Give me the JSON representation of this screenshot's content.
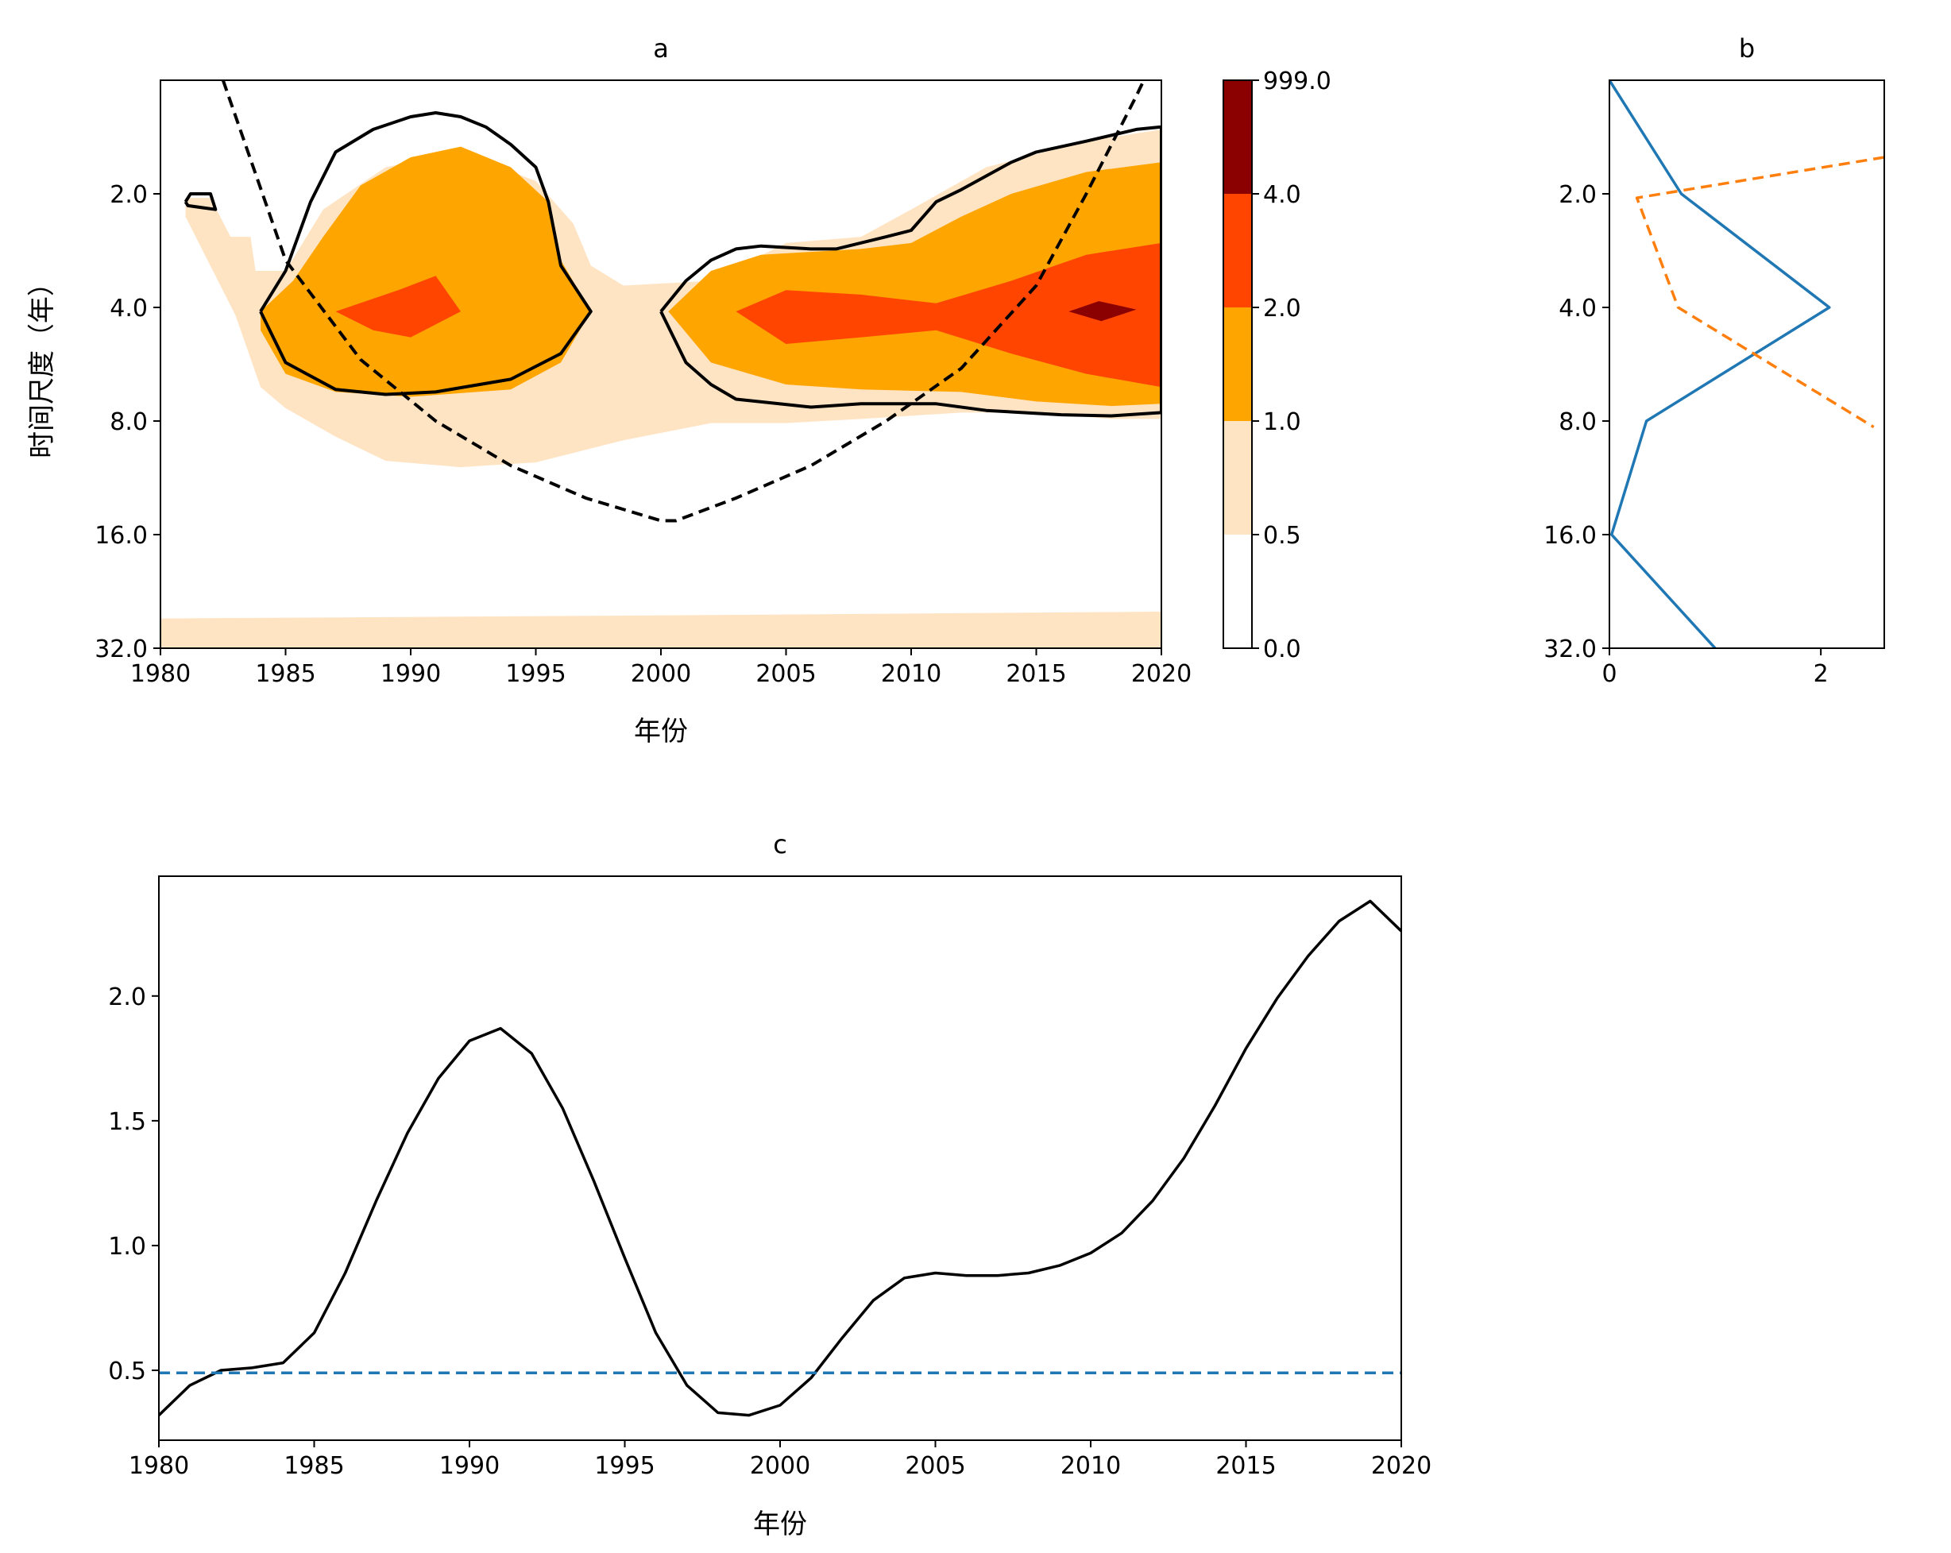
{
  "chart_data": [
    {
      "panel": "a",
      "type": "heatmap",
      "title": "a",
      "xlabel": "年份",
      "ylabel": "时间尺度（年）",
      "xlim": [
        1980,
        2020
      ],
      "x_ticks": [
        1980,
        1985,
        1990,
        1995,
        2000,
        2005,
        2010,
        2015,
        2020
      ],
      "y_scale": "log2",
      "y_inverted": true,
      "ylim": [
        1,
        32
      ],
      "y_ticks": [
        2,
        4,
        8,
        16,
        32
      ],
      "y_tick_labels": [
        "2.0",
        "4.0",
        "8.0",
        "16.0",
        "32.0"
      ],
      "colorbar": {
        "levels": [
          0.0,
          0.5,
          1.0,
          2.0,
          4.0,
          999.0
        ],
        "labels": [
          "0.0",
          "0.5",
          "1.0",
          "2.0",
          "4.0",
          "999.0"
        ],
        "colors": [
          "#ffffff",
          "#ffe4c4",
          "#ffa500",
          "#ff4500",
          "#8b0000"
        ]
      },
      "filled_regions": [
        {
          "level": 1,
          "points": [
            [
              1981,
              2.05
            ],
            [
              1982,
              2.05
            ],
            [
              1982.8,
              2.6
            ],
            [
              1983.6,
              2.6
            ],
            [
              1983.8,
              3.2
            ],
            [
              1985,
              3.2
            ],
            [
              1986.5,
              2.2
            ],
            [
              1989,
              1.7
            ],
            [
              1992,
              1.55
            ],
            [
              1995,
              1.85
            ],
            [
              1996.5,
              2.4
            ],
            [
              1997.2,
              3.1
            ],
            [
              1998.5,
              3.5
            ],
            [
              2002,
              3.4
            ],
            [
              2005,
              2.7
            ],
            [
              2008,
              2.6
            ],
            [
              2010,
              2.2
            ],
            [
              2013,
              1.7
            ],
            [
              2017,
              1.45
            ],
            [
              2020,
              1.35
            ],
            [
              2020,
              7.9
            ],
            [
              2018,
              7.9
            ],
            [
              2015,
              7.6
            ],
            [
              2012,
              7.6
            ],
            [
              2008,
              7.9
            ],
            [
              2005,
              8.1
            ],
            [
              2002,
              8.1
            ],
            [
              1998.5,
              9.0
            ],
            [
              1995,
              10.3
            ],
            [
              1992,
              10.6
            ],
            [
              1989,
              10.2
            ],
            [
              1987,
              8.8
            ],
            [
              1985,
              7.4
            ],
            [
              1984,
              6.5
            ],
            [
              1983,
              4.2
            ],
            [
              1982.1,
              3.2
            ],
            [
              1981,
              2.3
            ]
          ]
        },
        {
          "level": 1,
          "points": [
            [
              1980,
              26.7
            ],
            [
              2000,
              26.2
            ],
            [
              2020,
              25.6
            ],
            [
              2020,
              32
            ],
            [
              1980,
              32
            ]
          ]
        },
        {
          "level": 2,
          "points": [
            [
              1984,
              4.1
            ],
            [
              1985.3,
              3.4
            ],
            [
              1986.5,
              2.6
            ],
            [
              1988,
              1.9
            ],
            [
              1990,
              1.6
            ],
            [
              1992,
              1.5
            ],
            [
              1994,
              1.7
            ],
            [
              1995.5,
              2.1
            ],
            [
              1996,
              3.0
            ],
            [
              1997.2,
              4.1
            ],
            [
              1996,
              5.6
            ],
            [
              1994,
              6.6
            ],
            [
              1990,
              6.9
            ],
            [
              1987,
              6.7
            ],
            [
              1985,
              6.0
            ],
            [
              1984,
              4.6
            ]
          ]
        },
        {
          "level": 2,
          "points": [
            [
              2000.3,
              4.1
            ],
            [
              2002,
              3.2
            ],
            [
              2004,
              2.9
            ],
            [
              2008,
              2.8
            ],
            [
              2010,
              2.7
            ],
            [
              2012,
              2.3
            ],
            [
              2014,
              2.0
            ],
            [
              2017,
              1.75
            ],
            [
              2020,
              1.65
            ],
            [
              2020,
              7.2
            ],
            [
              2018,
              7.3
            ],
            [
              2015,
              7.1
            ],
            [
              2012,
              6.7
            ],
            [
              2008,
              6.6
            ],
            [
              2005,
              6.4
            ],
            [
              2002,
              5.6
            ]
          ]
        },
        {
          "level": 3,
          "points": [
            [
              1987,
              4.1
            ],
            [
              1989.5,
              3.6
            ],
            [
              1991,
              3.3
            ],
            [
              1992,
              4.1
            ],
            [
              1990,
              4.8
            ],
            [
              1988.5,
              4.6
            ]
          ]
        },
        {
          "level": 3,
          "points": [
            [
              2003,
              4.1
            ],
            [
              2005,
              3.6
            ],
            [
              2008,
              3.7
            ],
            [
              2011,
              3.9
            ],
            [
              2014,
              3.4
            ],
            [
              2017,
              2.9
            ],
            [
              2020,
              2.7
            ],
            [
              2020,
              6.5
            ],
            [
              2017,
              6.0
            ],
            [
              2014,
              5.3
            ],
            [
              2011,
              4.6
            ],
            [
              2008,
              4.8
            ],
            [
              2005,
              5.0
            ]
          ]
        },
        {
          "level": 4,
          "points": [
            [
              2016.3,
              4.1
            ],
            [
              2017.5,
              3.85
            ],
            [
              2019,
              4.05
            ],
            [
              2017.6,
              4.35
            ]
          ]
        }
      ],
      "significance_contours": [
        {
          "points": [
            [
              1981,
              2.1
            ],
            [
              1981.2,
              2.0
            ],
            [
              1982,
              2.0
            ],
            [
              1982.2,
              2.2
            ],
            [
              1981.1,
              2.15
            ],
            [
              1981,
              2.1
            ]
          ]
        },
        {
          "points": [
            [
              1984,
              4.1
            ],
            [
              1985,
              3.2
            ],
            [
              1986,
              2.1
            ],
            [
              1987,
              1.55
            ],
            [
              1988.5,
              1.35
            ],
            [
              1990,
              1.25
            ],
            [
              1991,
              1.22
            ],
            [
              1992,
              1.25
            ],
            [
              1993,
              1.33
            ],
            [
              1994,
              1.48
            ],
            [
              1995,
              1.7
            ],
            [
              1995.5,
              2.1
            ],
            [
              1996,
              3.1
            ],
            [
              1997.2,
              4.1
            ],
            [
              1996,
              5.3
            ],
            [
              1994,
              6.2
            ],
            [
              1991,
              6.7
            ],
            [
              1989,
              6.8
            ],
            [
              1987,
              6.6
            ],
            [
              1985,
              5.6
            ],
            [
              1984,
              4.1
            ]
          ]
        },
        {
          "points": [
            [
              2000,
              4.1
            ],
            [
              2001,
              3.4
            ],
            [
              2002,
              3.0
            ],
            [
              2003,
              2.8
            ],
            [
              2004,
              2.75
            ],
            [
              2006,
              2.8
            ],
            [
              2007,
              2.8
            ],
            [
              2009,
              2.6
            ],
            [
              2010,
              2.5
            ],
            [
              2011,
              2.1
            ],
            [
              2012,
              1.95
            ],
            [
              2014,
              1.65
            ],
            [
              2015,
              1.55
            ],
            [
              2017,
              1.45
            ],
            [
              2019,
              1.35
            ],
            [
              2020,
              1.33
            ],
            [
              2020,
              7.6
            ],
            [
              2018,
              7.75
            ],
            [
              2016,
              7.7
            ],
            [
              2013,
              7.5
            ],
            [
              2011,
              7.2
            ],
            [
              2008,
              7.2
            ],
            [
              2006,
              7.35
            ],
            [
              2003,
              7.0
            ],
            [
              2002,
              6.4
            ],
            [
              2001,
              5.6
            ],
            [
              2000,
              4.1
            ]
          ]
        }
      ],
      "cone_of_influence": {
        "x": [
          1982.5,
          1985,
          1988,
          1991,
          1994,
          1997,
          2000,
          2000.6,
          2003,
          2006,
          2009,
          2012,
          2015,
          2017,
          2019,
          2019.3
        ],
        "y": [
          1.0,
          3.0,
          5.5,
          8.0,
          10.5,
          12.8,
          14.7,
          14.7,
          12.8,
          10.5,
          8.0,
          5.8,
          3.5,
          2.0,
          1.1,
          1.0
        ]
      }
    },
    {
      "panel": "b",
      "type": "line",
      "title": "b",
      "xlim": [
        0,
        2.6
      ],
      "x_ticks": [
        0,
        2
      ],
      "y_scale": "log2",
      "y_inverted": true,
      "ylim": [
        1,
        32
      ],
      "y_ticks": [
        2,
        4,
        8,
        16,
        32
      ],
      "y_tick_labels": [
        "2.0",
        "4.0",
        "8.0",
        "16.0",
        "32.0"
      ],
      "series": [
        {
          "color": "#1f77b4",
          "dash": "solid",
          "x": [
            0.0,
            0.68,
            2.08,
            0.35,
            0.02,
            1.0
          ],
          "y": [
            1.0,
            2.0,
            4.0,
            8.0,
            16.0,
            32.0
          ]
        },
        {
          "color": "#ff7f0e",
          "dash": "dashed",
          "x": [
            2.6,
            0.26,
            0.65,
            2.5
          ],
          "y": [
            1.6,
            2.05,
            4.0,
            8.3
          ]
        }
      ]
    },
    {
      "panel": "c",
      "type": "line",
      "title": "c",
      "xlabel": "年份",
      "xlim": [
        1980,
        2020
      ],
      "ylim": [
        0.22,
        2.48
      ],
      "x_ticks": [
        1980,
        1985,
        1990,
        1995,
        2000,
        2005,
        2010,
        2015,
        2020
      ],
      "y_ticks": [
        0.5,
        1.0,
        1.5,
        2.0
      ],
      "y_tick_labels": [
        "0.5",
        "1.0",
        "1.5",
        "2.0"
      ],
      "series": [
        {
          "color": "#000000",
          "dash": "solid",
          "x": [
            1980,
            1981,
            1982,
            1983,
            1984,
            1985,
            1986,
            1987,
            1988,
            1989,
            1990,
            1991,
            1992,
            1993,
            1994,
            1995,
            1996,
            1997,
            1998,
            1999,
            2000,
            2001,
            2002,
            2003,
            2004,
            2005,
            2006,
            2007,
            2008,
            2009,
            2010,
            2011,
            2012,
            2013,
            2014,
            2015,
            2016,
            2017,
            2018,
            2019,
            2020
          ],
          "y": [
            0.32,
            0.44,
            0.5,
            0.51,
            0.53,
            0.65,
            0.89,
            1.18,
            1.45,
            1.67,
            1.82,
            1.87,
            1.77,
            1.55,
            1.26,
            0.95,
            0.65,
            0.44,
            0.33,
            0.32,
            0.36,
            0.47,
            0.63,
            0.78,
            0.87,
            0.89,
            0.88,
            0.88,
            0.89,
            0.92,
            0.97,
            1.05,
            1.18,
            1.35,
            1.56,
            1.79,
            1.99,
            2.16,
            2.3,
            2.38,
            2.26
          ]
        },
        {
          "color": "#1f77b4",
          "dash": "dashed",
          "x": [
            1980,
            2020
          ],
          "y": [
            0.49,
            0.49
          ]
        }
      ]
    }
  ]
}
